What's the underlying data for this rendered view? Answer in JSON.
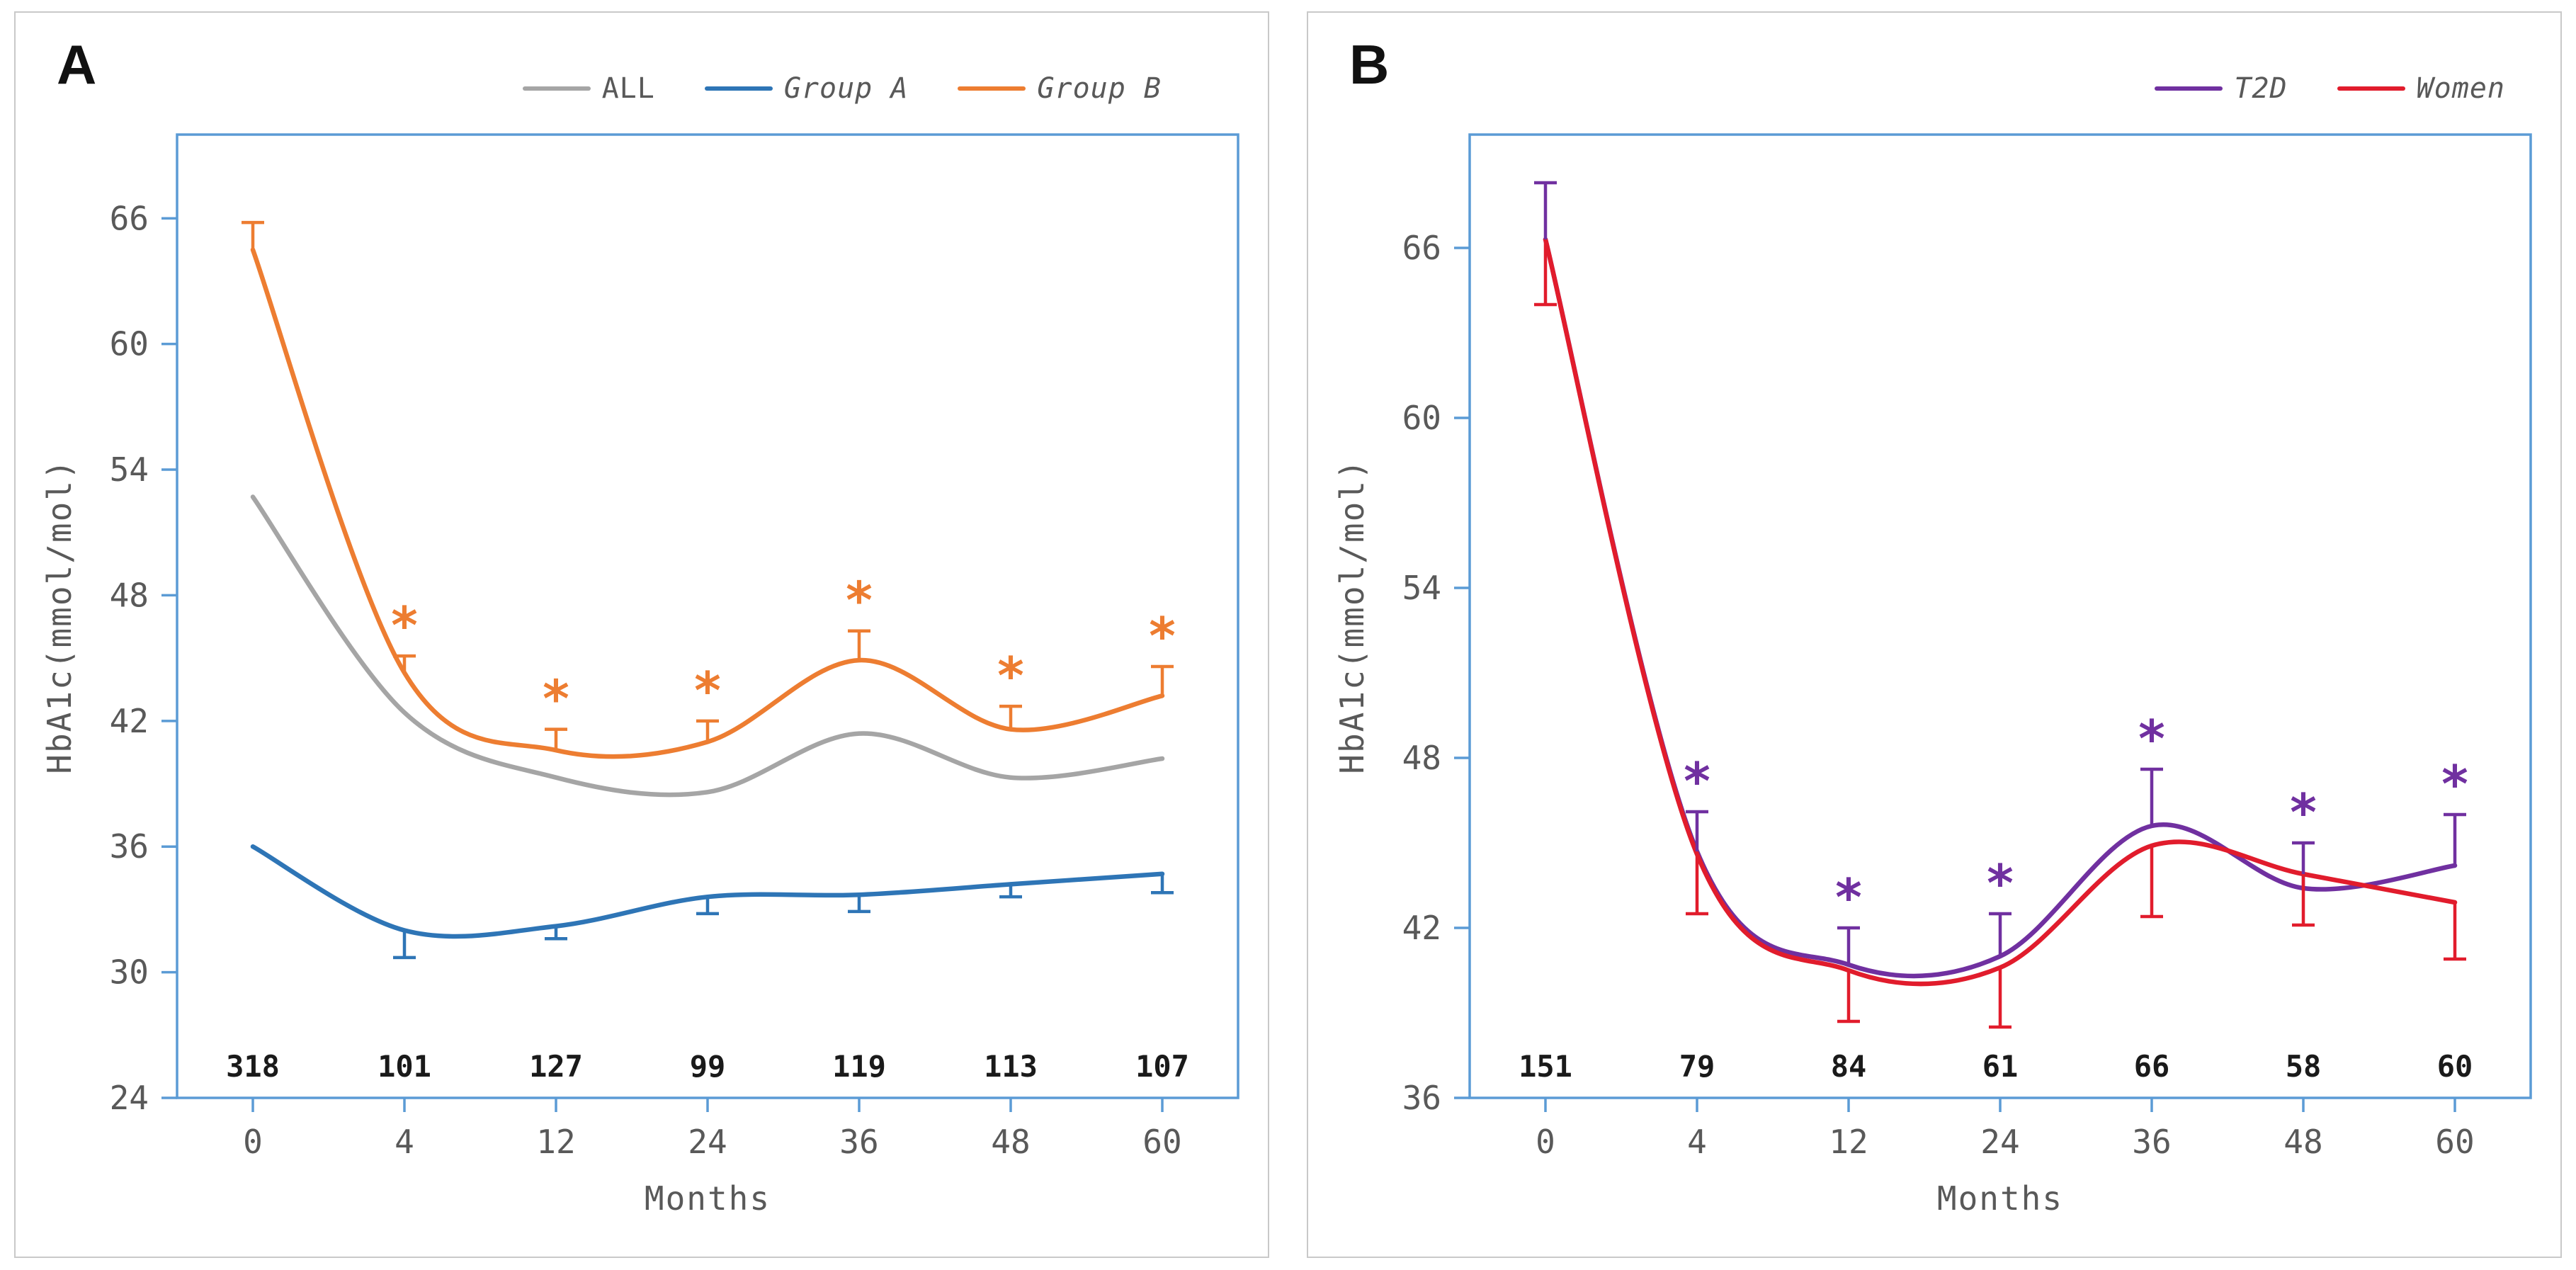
{
  "figure": {
    "y_axis_title": "HbA1c(mmol/mol)",
    "x_axis_title": "Months",
    "axis_color": "#5B9BD5",
    "tick_label_color": "#595959",
    "count_label_color": "#1a1a1a",
    "panel_border_color": "#c9c9c9"
  },
  "chart_data": [
    {
      "type": "line",
      "panel_label": "A",
      "xlabel": "Months",
      "ylabel": "HbA1c(mmol/mol)",
      "categories": [
        "0",
        "4",
        "12",
        "24",
        "36",
        "48",
        "60"
      ],
      "counts": [
        "318",
        "101",
        "127",
        "99",
        "119",
        "113",
        "107"
      ],
      "y_ticks": [
        24,
        30,
        36,
        42,
        48,
        54,
        60,
        66
      ],
      "ylim": [
        24,
        70
      ],
      "grid": false,
      "legend_position": "top-right",
      "series": [
        {
          "name": "ALL",
          "color": "#A5A5A5",
          "italic": false,
          "values": [
            52.7,
            42.4,
            39.3,
            38.6,
            41.4,
            39.3,
            40.2
          ],
          "err_up": [
            null,
            null,
            null,
            null,
            null,
            null,
            null
          ],
          "err_down": [
            null,
            null,
            null,
            null,
            null,
            null,
            null
          ],
          "asterisks": []
        },
        {
          "name": "Group A",
          "color": "#2E75B6",
          "italic": true,
          "values": [
            36.0,
            32.0,
            32.2,
            33.6,
            33.7,
            34.2,
            34.7
          ],
          "err_up": [
            null,
            null,
            null,
            null,
            null,
            null,
            null
          ],
          "err_down": [
            null,
            1.3,
            0.6,
            0.8,
            0.8,
            0.6,
            0.9
          ],
          "asterisks": []
        },
        {
          "name": "Group B",
          "color": "#ED7D31",
          "italic": true,
          "values": [
            64.5,
            44.3,
            40.6,
            41.0,
            44.9,
            41.6,
            43.2
          ],
          "err_up": [
            1.3,
            0.8,
            1.0,
            1.0,
            1.4,
            1.1,
            1.4
          ],
          "err_down": [
            null,
            null,
            null,
            null,
            null,
            null,
            null
          ],
          "asterisks": [
            1,
            2,
            3,
            4,
            5,
            6
          ],
          "asterisk_color": "#ED7D31"
        }
      ]
    },
    {
      "type": "line",
      "panel_label": "B",
      "xlabel": "Months",
      "ylabel": "HbA1c(mmol/mol)",
      "categories": [
        "0",
        "4",
        "12",
        "24",
        "36",
        "48",
        "60"
      ],
      "counts": [
        "151",
        "79",
        "84",
        "61",
        "66",
        "58",
        "60"
      ],
      "y_ticks": [
        36,
        42,
        48,
        54,
        60,
        66
      ],
      "ylim": [
        36,
        70
      ],
      "grid": false,
      "legend_position": "top-right",
      "series": [
        {
          "name": "T2D",
          "color": "#7030A0",
          "italic": true,
          "values": [
            66.3,
            44.7,
            40.7,
            41.0,
            45.6,
            43.4,
            44.2
          ],
          "err_up": [
            2.0,
            1.4,
            1.3,
            1.5,
            2.0,
            1.6,
            1.8
          ],
          "err_down": [
            null,
            null,
            null,
            null,
            null,
            null,
            null
          ],
          "asterisks": [
            1,
            2,
            3,
            4,
            5,
            6
          ],
          "asterisk_color": "#7030A0"
        },
        {
          "name": "Women",
          "color": "#E11C2C",
          "italic": true,
          "values": [
            66.3,
            44.6,
            40.5,
            40.6,
            44.9,
            43.9,
            42.9
          ],
          "err_up": [
            null,
            null,
            null,
            null,
            null,
            null,
            null
          ],
          "err_down": [
            2.3,
            2.1,
            1.8,
            2.1,
            2.5,
            1.8,
            2.0
          ],
          "asterisks": []
        }
      ]
    }
  ]
}
